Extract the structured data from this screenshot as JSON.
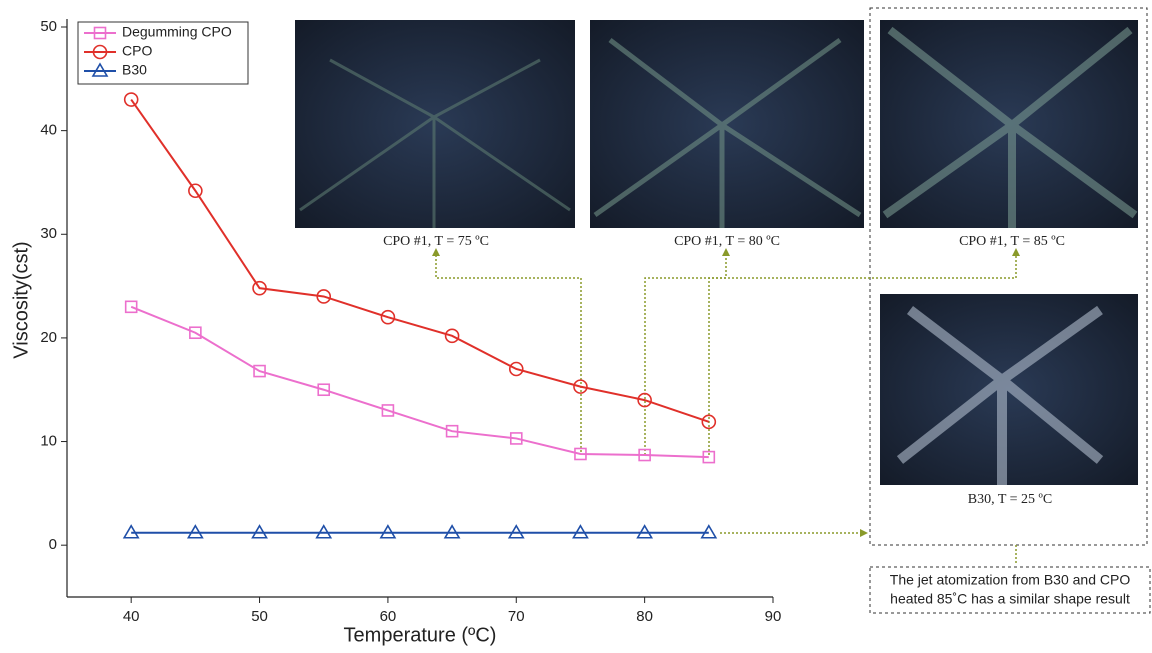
{
  "chart_data": {
    "type": "line",
    "x_label": "Temperature (ºC)",
    "y_label": "Viscosity(cst)",
    "x": [
      40,
      45,
      50,
      55,
      60,
      65,
      70,
      75,
      80,
      85
    ],
    "series": [
      {
        "name": "Degumming CPO",
        "color": "#ec6fcd",
        "marker": "square",
        "values": [
          23,
          20.5,
          16.8,
          15,
          13,
          11,
          10.3,
          8.8,
          8.7,
          8.5
        ]
      },
      {
        "name": "CPO",
        "color": "#e0302a",
        "marker": "circle",
        "values": [
          43,
          34.2,
          24.8,
          24,
          22,
          20.2,
          17,
          15.3,
          14,
          11.9
        ]
      },
      {
        "name": "B30",
        "color": "#1f4fa8",
        "marker": "triangle",
        "values": [
          1.2,
          1.2,
          1.2,
          1.2,
          1.2,
          1.2,
          1.2,
          1.2,
          1.2,
          1.2
        ]
      }
    ],
    "xlim": [
      35,
      90
    ],
    "xticks": [
      40,
      50,
      60,
      70,
      80,
      90
    ],
    "ylim": [
      -5,
      50
    ],
    "yticks": [
      0,
      10,
      20,
      30,
      40,
      50
    ],
    "legend": "upper left",
    "annotations": [
      "CPO #1, T = 75 ºC",
      "CPO #1, T = 80 ºC",
      "CPO #1, T = 85 ºC",
      "B30, T = 25 ºC"
    ],
    "note": [
      "The jet atomization from B30 and CPO",
      "heated 85˚C has a similar shape result"
    ]
  }
}
